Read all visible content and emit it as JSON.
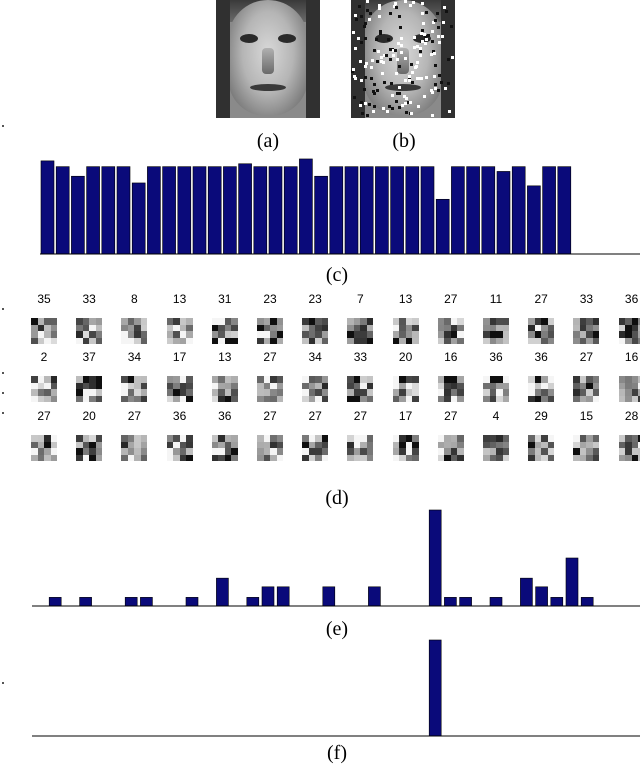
{
  "captions": {
    "a": "(a)",
    "b": "(b)",
    "c": "(c)",
    "d": "(d)",
    "e": "(e)",
    "f": "(f)"
  },
  "images": {
    "a": "original-face",
    "b": "noisy-face"
  },
  "colors": {
    "bar": "#0a0a7a",
    "axis": "#000000"
  },
  "patch_grid": {
    "rows": [
      [
        "35",
        "33",
        "8",
        "13",
        "31",
        "23",
        "23",
        "7",
        "13",
        "27",
        "11",
        "27",
        "33",
        "36"
      ],
      [
        "2",
        "37",
        "34",
        "17",
        "13",
        "27",
        "34",
        "33",
        "20",
        "16",
        "36",
        "36",
        "27",
        "16"
      ],
      [
        "27",
        "20",
        "27",
        "36",
        "36",
        "27",
        "27",
        "27",
        "17",
        "27",
        "4",
        "29",
        "15",
        "28"
      ]
    ]
  },
  "chart_data": [
    {
      "panel": "(c)",
      "type": "bar",
      "values": [
        0.97,
        0.91,
        0.81,
        0.91,
        0.91,
        0.91,
        0.74,
        0.91,
        0.91,
        0.91,
        0.91,
        0.91,
        0.91,
        0.94,
        0.91,
        0.91,
        0.91,
        0.99,
        0.81,
        0.91,
        0.91,
        0.91,
        0.91,
        0.91,
        0.91,
        0.91,
        0.57,
        0.91,
        0.91,
        0.91,
        0.86,
        0.91,
        0.71,
        0.91,
        0.91
      ],
      "ylim": [
        0,
        1
      ]
    },
    {
      "panel": "(e)",
      "type": "bar",
      "values": [
        0,
        0.09,
        0,
        0.09,
        0,
        0,
        0.09,
        0.09,
        0,
        0,
        0.09,
        0,
        0.29,
        0,
        0.09,
        0.2,
        0.2,
        0,
        0,
        0.2,
        0,
        0,
        0.2,
        0,
        0,
        0,
        1.0,
        0.09,
        0.09,
        0,
        0.09,
        0,
        0.29,
        0.2,
        0.09,
        0.5,
        0.09,
        0
      ],
      "ylim": [
        0,
        1
      ]
    },
    {
      "panel": "(f)",
      "type": "bar",
      "values": [
        0,
        0,
        0,
        0,
        0,
        0,
        0,
        0,
        0,
        0,
        0,
        0,
        0,
        0,
        0,
        0,
        0,
        0,
        0,
        0,
        0,
        0,
        0,
        0,
        0,
        0,
        1.0,
        0,
        0,
        0,
        0,
        0,
        0,
        0,
        0,
        0,
        0,
        0
      ],
      "ylim": [
        0,
        1
      ]
    }
  ]
}
